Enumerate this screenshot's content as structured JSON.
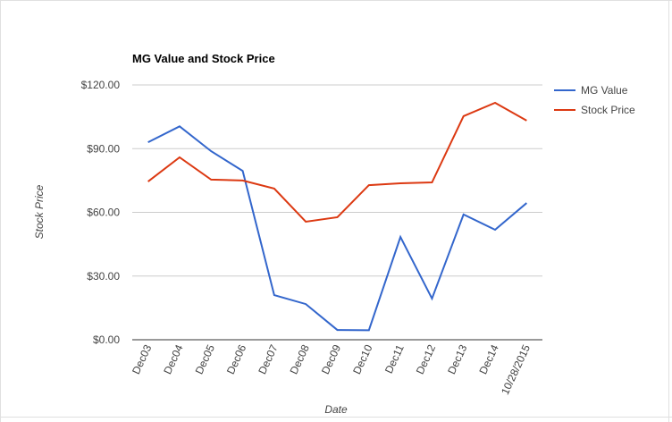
{
  "chart_data": {
    "type": "line",
    "title": "MG Value and Stock Price",
    "x_label": "Date",
    "y_label": "Stock Price",
    "categories": [
      "Dec03",
      "Dec04",
      "Dec05",
      "Dec06",
      "Dec07",
      "Dec08",
      "Dec09",
      "Dec10",
      "Dec11",
      "Dec12",
      "Dec13",
      "Dec14",
      "10/28/2015"
    ],
    "series": [
      {
        "name": "MG Value",
        "color": "#3366cc",
        "values": [
          93,
          100.5,
          88.8,
          79.5,
          21,
          16.8,
          4.6,
          4.5,
          48.4,
          19.4,
          59,
          51.8,
          64.4
        ]
      },
      {
        "name": "Stock Price",
        "color": "#dc3912",
        "values": [
          74.5,
          85.9,
          75.4,
          75,
          71.2,
          55.6,
          57.7,
          72.8,
          73.7,
          74.1,
          105.3,
          111.6,
          103.2
        ]
      }
    ],
    "ylim": [
      0,
      120
    ],
    "yticks": [
      {
        "value": 0,
        "label": "$0.00"
      },
      {
        "value": 30,
        "label": "$30.00"
      },
      {
        "value": 60,
        "label": "$60.00"
      },
      {
        "value": 90,
        "label": "$90.00"
      },
      {
        "value": 120,
        "label": "$120.00"
      }
    ],
    "grid": true,
    "legend": "right"
  }
}
